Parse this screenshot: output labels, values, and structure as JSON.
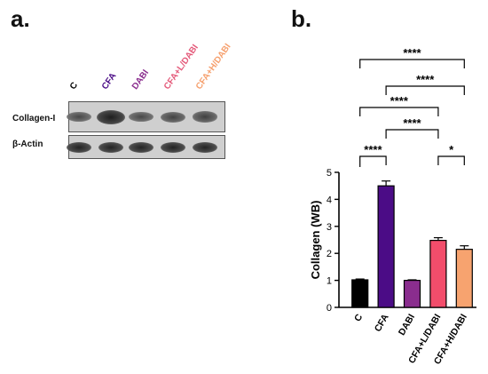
{
  "panel_a": {
    "label": "a.",
    "lanes": [
      {
        "name": "C",
        "color": "#000000"
      },
      {
        "name": "CFA",
        "color": "#4b0c86"
      },
      {
        "name": "DABI",
        "color": "#8a2d8e"
      },
      {
        "name": "CFA+L/DABI",
        "color": "#e45a7a"
      },
      {
        "name": "CFA+H/DABI",
        "color": "#f6a06e"
      }
    ],
    "rows": [
      {
        "label": "Collagen-I",
        "band_intensity": [
          0.55,
          1.0,
          0.55,
          0.6,
          0.62
        ]
      },
      {
        "label": "β-Actin",
        "band_intensity": [
          0.95,
          0.95,
          0.95,
          0.95,
          0.95
        ]
      }
    ]
  },
  "panel_b": {
    "label": "b."
  },
  "chart_data": {
    "type": "bar",
    "categories": [
      "C",
      "CFA",
      "DABI",
      "CFA+L/DABI",
      "CFA+H/DABI"
    ],
    "values": [
      1.02,
      4.5,
      1.0,
      2.48,
      2.15
    ],
    "errors": [
      0.03,
      0.18,
      0.02,
      0.1,
      0.13
    ],
    "colors": [
      "#000000",
      "#4b0c86",
      "#8a2d8e",
      "#f24d6b",
      "#f7a36f"
    ],
    "ylabel": "Collagen (WB)",
    "ylim": [
      0,
      5
    ],
    "yticks": [
      0,
      1,
      2,
      3,
      4,
      5
    ],
    "significance": [
      {
        "from": 0,
        "to": 1,
        "label": "****"
      },
      {
        "from": 3,
        "to": 4,
        "label": "*"
      },
      {
        "from": 1,
        "to": 3,
        "label": "****"
      },
      {
        "from": 0,
        "to": 3,
        "label": "****"
      },
      {
        "from": 1,
        "to": 4,
        "label": "****"
      },
      {
        "from": 0,
        "to": 4,
        "label": "****"
      }
    ]
  }
}
